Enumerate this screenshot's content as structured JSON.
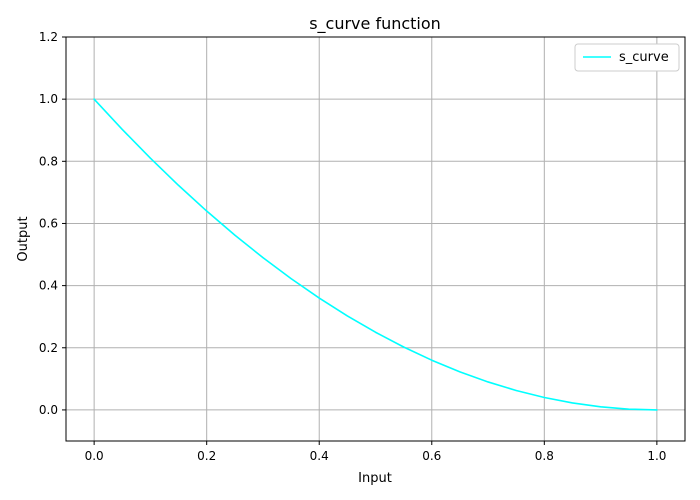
{
  "chart_data": {
    "type": "line",
    "title": "s_curve function",
    "xlabel": "Input",
    "ylabel": "Output",
    "xlim": [
      -0.05,
      1.05
    ],
    "ylim": [
      -0.1,
      1.2
    ],
    "x_ticks": [
      "0.0",
      "0.2",
      "0.4",
      "0.6",
      "0.8",
      "1.0"
    ],
    "y_ticks": [
      "0.0",
      "0.2",
      "0.4",
      "0.6",
      "0.8",
      "1.0",
      "1.2"
    ],
    "grid": true,
    "legend_position": "top-right",
    "series": [
      {
        "name": "s_curve",
        "color": "#00ffff",
        "x": [
          0.0,
          0.05,
          0.1,
          0.15,
          0.2,
          0.25,
          0.3,
          0.35,
          0.4,
          0.45,
          0.5,
          0.55,
          0.6,
          0.65,
          0.7,
          0.75,
          0.8,
          0.85,
          0.9,
          0.95,
          1.0
        ],
        "y": [
          1.0,
          0.9025,
          0.81,
          0.7225,
          0.64,
          0.5625,
          0.49,
          0.4225,
          0.36,
          0.3025,
          0.25,
          0.2025,
          0.16,
          0.1225,
          0.09,
          0.0625,
          0.04,
          0.0225,
          0.01,
          0.0025,
          0.0
        ]
      }
    ]
  }
}
